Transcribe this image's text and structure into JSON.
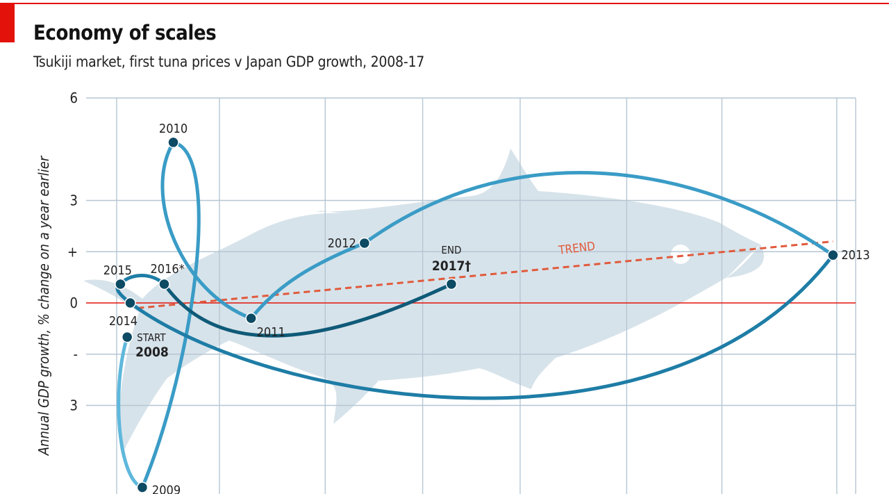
{
  "title": "Economy of scales",
  "subtitle": "Tsukiji market, first tuna prices v Japan GDP growth, 2008-17",
  "chart_data": {
    "type": "scatter",
    "title": "Economy of scales",
    "subtitle": "Tsukiji market, first tuna prices v Japan GDP growth, 2008-17",
    "ylabel": "Annual GDP growth, % change on a year earlier",
    "xlabel": "",
    "ylim": [
      -6,
      6
    ],
    "y_ticks": [
      "6",
      "3",
      "+",
      "0",
      "-",
      "3"
    ],
    "grid": true,
    "series": [
      {
        "name": "",
        "points": [
          {
            "label": "START",
            "year": "2008",
            "x": 0.36,
            "y": -1.0
          },
          {
            "label": "",
            "year": "2009",
            "x": 0.56,
            "y": -5.4
          },
          {
            "label": "",
            "year": "2010",
            "x": 0.97,
            "y": 4.7
          },
          {
            "label": "",
            "year": "2011",
            "x": 2.0,
            "y": -0.45
          },
          {
            "label": "",
            "year": "2012",
            "x": 3.5,
            "y": 1.75
          },
          {
            "label": "",
            "year": "2013",
            "x": 9.7,
            "y": 1.4
          },
          {
            "label": "",
            "year": "2014",
            "x": 0.4,
            "y": 0.0
          },
          {
            "label": "",
            "year": "2015",
            "x": 0.27,
            "y": 0.55
          },
          {
            "label": "",
            "year": "2016",
            "x": 0.85,
            "y": 0.55
          },
          {
            "label": "END",
            "year": "2017",
            "x": 4.65,
            "y": 0.55
          }
        ]
      }
    ],
    "trend_label": "TREND",
    "trend_line": {
      "x": [
        0.5,
        9.7
      ],
      "y": [
        -0.15,
        1.8
      ]
    },
    "annotations": {
      "2016": "*",
      "2017": "†"
    }
  },
  "colors": {
    "accent_red": "#e3120b",
    "trend": "#e05a3c",
    "fish": "#d7e3ea",
    "grid": "#b6c6d3",
    "point": "#0d4a63",
    "early": "#5fb8dc",
    "mid": "#3a9cc6",
    "late": "#1e7da6",
    "latest": "#0f5a78"
  }
}
